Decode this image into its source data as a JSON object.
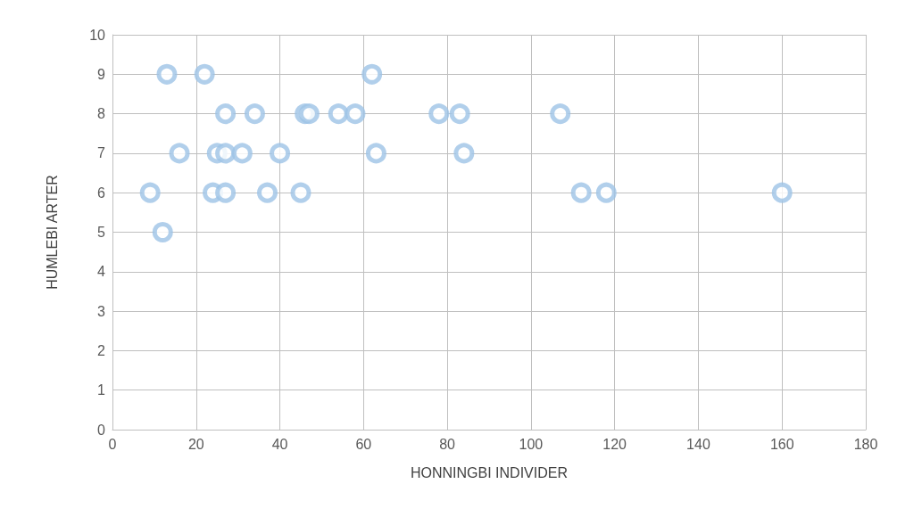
{
  "chart_data": {
    "type": "scatter",
    "xlabel": "HONNINGBI INDIVIDER",
    "ylabel": "HUMLEBI ARTER",
    "xlim": [
      0,
      180
    ],
    "xticks": [
      0,
      20,
      40,
      60,
      80,
      100,
      120,
      140,
      160,
      180
    ],
    "ylim": [
      0,
      10
    ],
    "yticks": [
      0,
      1,
      2,
      3,
      4,
      5,
      6,
      7,
      8,
      9,
      10
    ],
    "grid": true,
    "marker": "circle",
    "series": [
      {
        "color": "#9dc3e6",
        "x": [
          13,
          22,
          62,
          27,
          34,
          46,
          47,
          54,
          58,
          78,
          83,
          107,
          16,
          25,
          27,
          31,
          40,
          63,
          84,
          9,
          24,
          27,
          37,
          45,
          112,
          118,
          160,
          12
        ],
        "values": [
          9,
          9,
          9,
          8,
          8,
          8,
          8,
          8,
          8,
          8,
          8,
          8,
          7,
          7,
          7,
          7,
          7,
          7,
          7,
          6,
          6,
          6,
          6,
          6,
          6,
          6,
          6,
          5
        ]
      }
    ]
  }
}
